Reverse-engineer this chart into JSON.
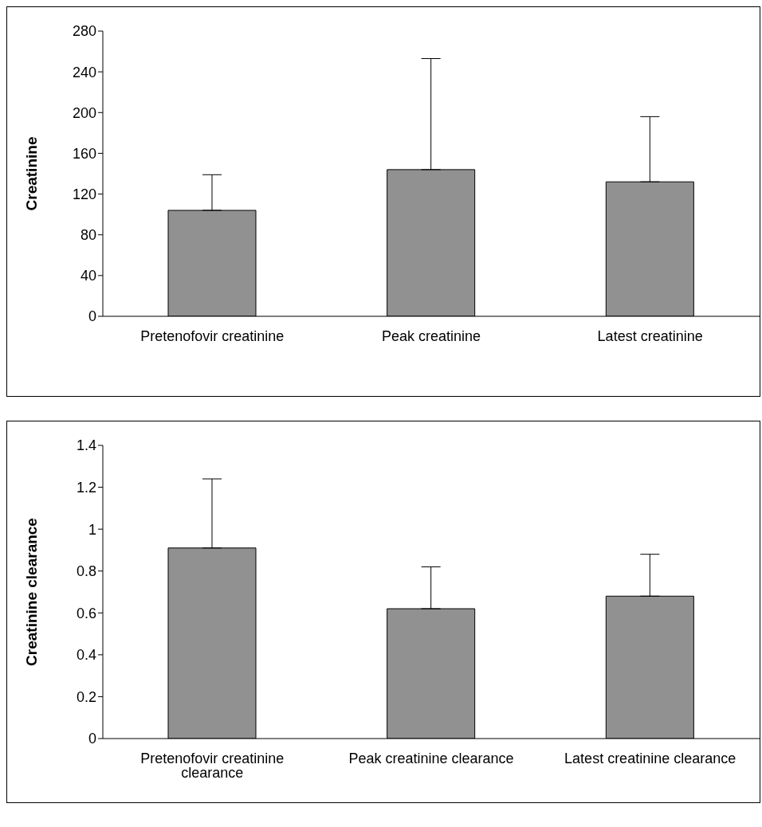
{
  "chart_data": [
    {
      "type": "bar",
      "ylabel": "Creatinine",
      "categories": [
        "Pretenofovir creatinine",
        "Peak creatinine",
        "Latest creatinine"
      ],
      "values": [
        104,
        144,
        132
      ],
      "errors": [
        [
          104,
          139
        ],
        [
          144,
          253
        ],
        [
          132,
          196
        ]
      ],
      "color": "#919191",
      "ylim": [
        0,
        280
      ],
      "yticks": [
        0,
        40,
        80,
        120,
        160,
        200,
        240,
        280
      ]
    },
    {
      "type": "bar",
      "ylabel": "Creatinine clearance",
      "categories": [
        "Pretenofovir creatinine clearance",
        "Peak creatinine clearance",
        "Latest creatinine clearance"
      ],
      "values": [
        0.91,
        0.62,
        0.68
      ],
      "errors": [
        [
          0.91,
          1.24
        ],
        [
          0.62,
          0.82
        ],
        [
          0.68,
          0.88
        ]
      ],
      "color": "#919191",
      "ylim": [
        0,
        1.4
      ],
      "yticks": [
        0,
        0.2,
        0.4,
        0.6,
        0.8,
        1,
        1.2,
        1.4
      ]
    }
  ]
}
